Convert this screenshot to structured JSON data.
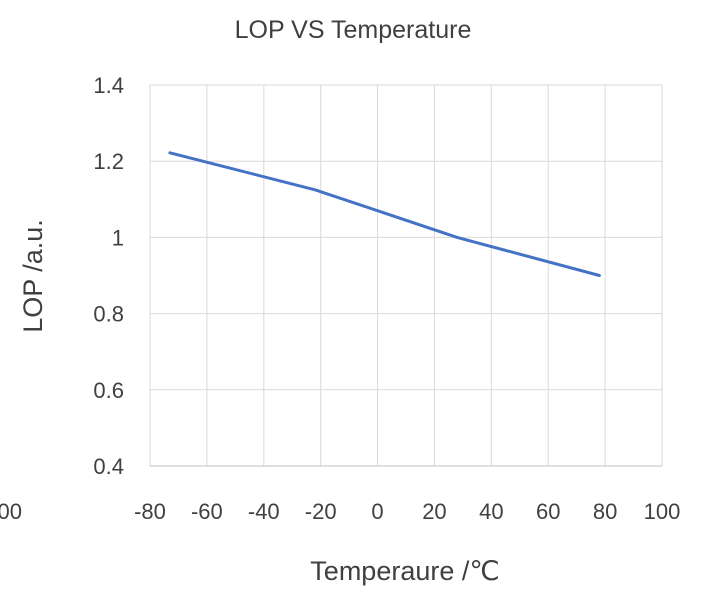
{
  "chart_data": {
    "type": "line",
    "title": "LOP VS Temperature",
    "xlabel": "Temperaure /℃",
    "ylabel": "LOP /a.u.",
    "xlim": [
      -80,
      100
    ],
    "ylim": [
      0.4,
      1.4
    ],
    "x_ticks": [
      "-80",
      "-60",
      "-40",
      "-20",
      "0",
      "20",
      "40",
      "60",
      "80",
      "100"
    ],
    "x_tick_values": [
      -80,
      -60,
      -40,
      -20,
      0,
      20,
      40,
      60,
      80,
      100
    ],
    "y_ticks": [
      "0.4",
      "0.6",
      "0.8",
      "1",
      "1.2",
      "1.4"
    ],
    "y_tick_values": [
      0.4,
      0.6,
      0.8,
      1.0,
      1.2,
      1.4
    ],
    "clipped_left_label": "00",
    "grid": true,
    "legend": "none",
    "series": [
      {
        "color": "#4472C4",
        "x": [
          -73,
          -22,
          28,
          78
        ],
        "y": [
          1.222,
          1.125,
          1.0,
          0.9
        ]
      }
    ]
  }
}
